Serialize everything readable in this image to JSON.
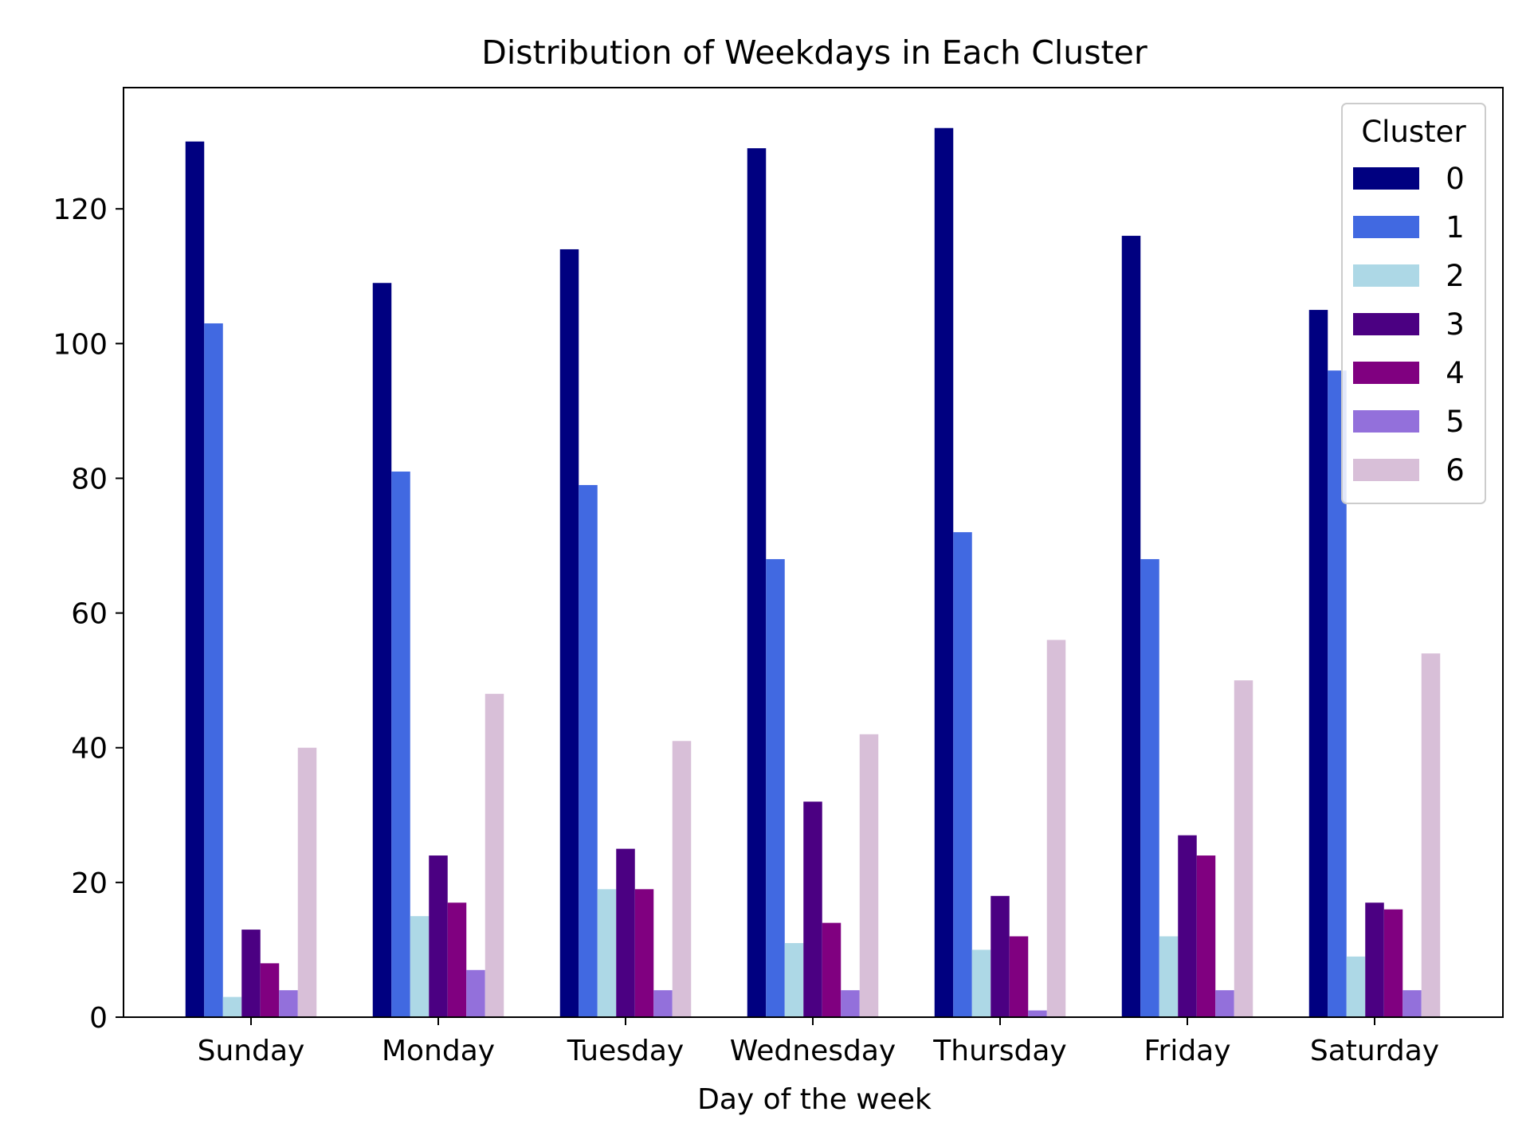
{
  "chart_data": {
    "type": "bar",
    "title": "Distribution of Weekdays in Each Cluster",
    "xlabel": "Day of the week",
    "ylabel": "",
    "ylim": [
      0,
      138
    ],
    "yticks": [
      0,
      20,
      40,
      60,
      80,
      100,
      120
    ],
    "grid": false,
    "legend": {
      "title": "Cluster",
      "placement": "top-right"
    },
    "categories": [
      "Sunday",
      "Monday",
      "Tuesday",
      "Wednesday",
      "Thursday",
      "Friday",
      "Saturday"
    ],
    "series": [
      {
        "name": "0",
        "color": "#000080",
        "values": [
          130,
          109,
          114,
          129,
          132,
          116,
          105
        ]
      },
      {
        "name": "1",
        "color": "#4169E1",
        "values": [
          103,
          81,
          79,
          68,
          72,
          68,
          96
        ]
      },
      {
        "name": "2",
        "color": "#ADD8E6",
        "values": [
          3,
          15,
          19,
          11,
          10,
          12,
          9
        ]
      },
      {
        "name": "3",
        "color": "#4B0082",
        "values": [
          13,
          24,
          25,
          32,
          18,
          27,
          17
        ]
      },
      {
        "name": "4",
        "color": "#800080",
        "values": [
          8,
          17,
          19,
          14,
          12,
          24,
          16
        ]
      },
      {
        "name": "5",
        "color": "#9370DB",
        "values": [
          4,
          7,
          4,
          4,
          1,
          4,
          4
        ]
      },
      {
        "name": "6",
        "color": "#D8BFD8",
        "values": [
          40,
          48,
          41,
          42,
          56,
          50,
          54
        ]
      }
    ]
  }
}
